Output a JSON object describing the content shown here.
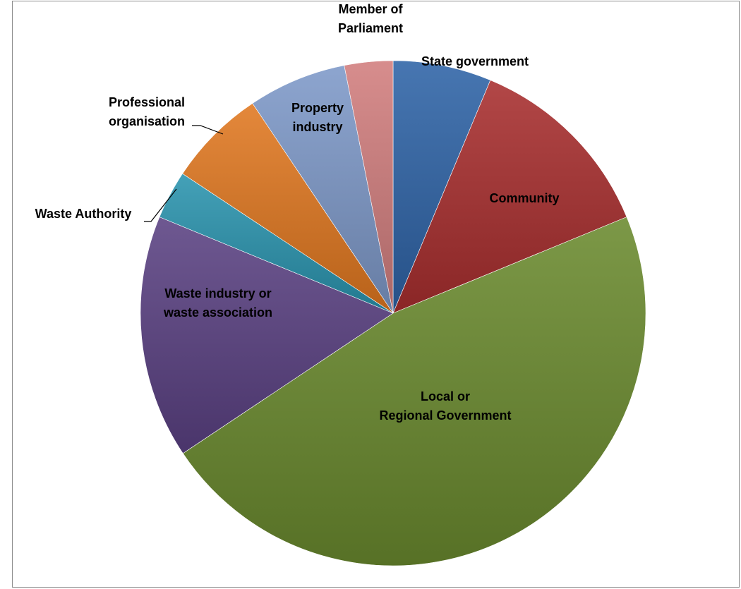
{
  "chart_data": {
    "type": "pie",
    "title": "",
    "legend": "none",
    "slices": [
      {
        "label": "State government",
        "value": 6.5,
        "color": "#2E63A6"
      },
      {
        "label": "Community",
        "value": 12.9,
        "color": "#A82E2E"
      },
      {
        "label": "Local or Regional Government",
        "value": 48.4,
        "color": "#6A8A2E"
      },
      {
        "label": "Waste industry or waste association",
        "value": 16.1,
        "color": "#5A4182"
      },
      {
        "label": "Waste Authority",
        "value": 3.2,
        "color": "#2A94AE"
      },
      {
        "label": "Professional organisation",
        "value": 6.5,
        "color": "#E07820"
      },
      {
        "label": "Property industry",
        "value": 6.5,
        "color": "#7D99C8"
      },
      {
        "label": "Member of Parliament",
        "value": 3.2,
        "color": "#D17D7D"
      }
    ]
  }
}
